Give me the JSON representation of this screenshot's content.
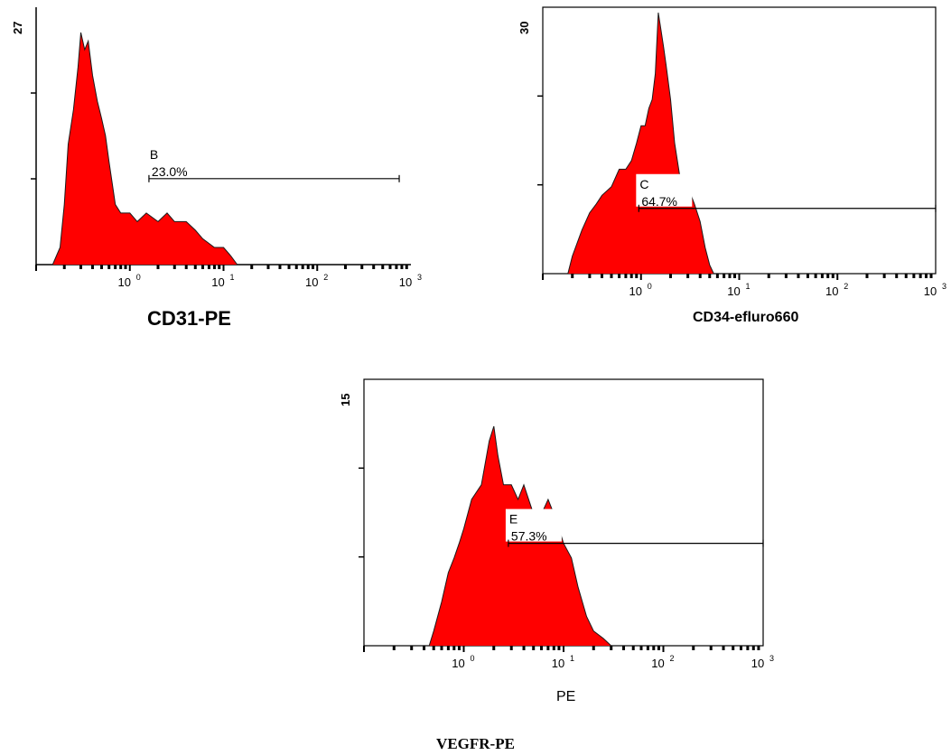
{
  "caption": "VEGFR-PE",
  "chart_data": [
    {
      "type": "area",
      "xscale": "log",
      "xlim": [
        0.1,
        1000
      ],
      "ylim": [
        0,
        27
      ],
      "ytick_label": "27",
      "xticks": [
        {
          "value": 1,
          "label": "10",
          "exp": "0"
        },
        {
          "value": 10,
          "label": "10",
          "exp": "1"
        },
        {
          "value": 100,
          "label": "10",
          "exp": "2"
        },
        {
          "value": 1000,
          "label": "10",
          "exp": "3"
        }
      ],
      "xlabel": "CD31-PE",
      "color": "#ff0000",
      "x": [
        0.15,
        0.18,
        0.2,
        0.22,
        0.25,
        0.28,
        0.3,
        0.33,
        0.36,
        0.4,
        0.45,
        0.5,
        0.55,
        0.6,
        0.7,
        0.8,
        0.9,
        1.0,
        1.2,
        1.5,
        2.0,
        2.5,
        3.0,
        4.0,
        5.0,
        6.0,
        8.0,
        10.0,
        12.0,
        14.0
      ],
      "y": [
        0,
        2,
        7,
        14,
        18,
        23,
        27,
        25,
        26,
        22,
        19,
        17,
        15,
        12,
        7,
        6,
        6,
        6,
        5,
        6,
        5,
        6,
        5,
        5,
        4,
        3,
        2,
        2,
        1,
        0
      ],
      "gate": {
        "label": "B",
        "percent": "23.0%",
        "x_start": 1.6,
        "x_end": 750,
        "y": 10
      }
    },
    {
      "type": "area",
      "xscale": "log",
      "xlim": [
        0.1,
        1000
      ],
      "ylim": [
        0,
        30
      ],
      "ytick_label": "30",
      "xticks": [
        {
          "value": 1,
          "label": "10",
          "exp": "0"
        },
        {
          "value": 10,
          "label": "10",
          "exp": "1"
        },
        {
          "value": 100,
          "label": "10",
          "exp": "2"
        },
        {
          "value": 1000,
          "label": "10",
          "exp": "3"
        }
      ],
      "xlabel": "CD34-efluro660",
      "color": "#ff0000",
      "x": [
        0.18,
        0.2,
        0.25,
        0.3,
        0.35,
        0.4,
        0.5,
        0.6,
        0.7,
        0.8,
        0.9,
        1.0,
        1.1,
        1.2,
        1.3,
        1.4,
        1.5,
        1.6,
        1.7,
        1.8,
        2.0,
        2.2,
        2.5,
        3.0,
        3.5,
        4.0,
        4.5,
        5.0,
        5.5
      ],
      "y": [
        0,
        2,
        5,
        7,
        8,
        9,
        10,
        12,
        12,
        13,
        15,
        17,
        17,
        19,
        20,
        23,
        30,
        28,
        26,
        24,
        20,
        15,
        11,
        10,
        8,
        6,
        3,
        1,
        0
      ],
      "gate": {
        "label": "C",
        "percent": "64.7%",
        "x_start": 0.95,
        "x_end": 1000,
        "y": 7.5
      }
    },
    {
      "type": "area",
      "xscale": "log",
      "xlim": [
        0.1,
        1000
      ],
      "ylim": [
        0,
        15
      ],
      "ytick_label": "15",
      "xticks": [
        {
          "value": 1,
          "label": "10",
          "exp": "0"
        },
        {
          "value": 10,
          "label": "10",
          "exp": "1"
        },
        {
          "value": 100,
          "label": "10",
          "exp": "2"
        },
        {
          "value": 1000,
          "label": "10",
          "exp": "3"
        }
      ],
      "xlabel": "PE",
      "color": "#ff0000",
      "x": [
        0.45,
        0.5,
        0.6,
        0.7,
        0.8,
        0.9,
        1.0,
        1.2,
        1.5,
        1.8,
        2.0,
        2.2,
        2.5,
        3.0,
        3.5,
        4.0,
        5.0,
        6.0,
        7.0,
        8.0,
        9.0,
        10.0,
        12.0,
        14.0,
        17.0,
        20.0,
        25.0,
        30.0
      ],
      "y": [
        0,
        1,
        3,
        5,
        6,
        7,
        8,
        10,
        11,
        14,
        15,
        13,
        11,
        11,
        10,
        11,
        9,
        9,
        10,
        9,
        8,
        7,
        6,
        4,
        2,
        1,
        0.5,
        0
      ],
      "gate": {
        "label": "E",
        "percent": "57.3%",
        "x_start": 2.8,
        "x_end": 1000,
        "y": 7
      }
    }
  ]
}
